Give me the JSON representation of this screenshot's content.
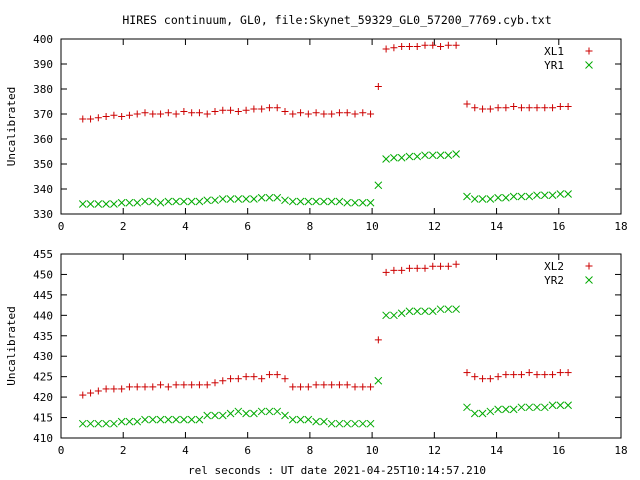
{
  "title": "HIRES continuum, GL0, file:Skynet_59329_GL0_57200_7769.cyb.txt",
  "xlabel": "rel seconds : UT date 2021-04-25T10:14:57.210",
  "chart_data": [
    {
      "type": "scatter",
      "ylabel": "Uncalibrated",
      "xlim": [
        0,
        18
      ],
      "ylim": [
        330,
        400
      ],
      "xticks": [
        0,
        2,
        4,
        6,
        8,
        10,
        12,
        14,
        16,
        18
      ],
      "yticks": [
        330,
        340,
        350,
        360,
        370,
        380,
        390,
        400
      ],
      "grid": false,
      "legend": "top-right",
      "series": [
        {
          "name": "XL1",
          "marker": "+",
          "color": "#cc0000",
          "x": [
            0.7,
            0.95,
            1.2,
            1.45,
            1.7,
            1.95,
            2.2,
            2.45,
            2.7,
            2.95,
            3.2,
            3.45,
            3.7,
            3.95,
            4.2,
            4.45,
            4.7,
            4.95,
            5.2,
            5.45,
            5.7,
            5.95,
            6.2,
            6.45,
            6.7,
            6.95,
            7.2,
            7.45,
            7.7,
            7.95,
            8.2,
            8.45,
            8.7,
            8.95,
            9.2,
            9.45,
            9.7,
            9.95,
            10.2,
            10.45,
            10.7,
            10.95,
            11.2,
            11.45,
            11.7,
            11.95,
            12.2,
            12.45,
            12.7,
            13.05,
            13.3,
            13.55,
            13.8,
            14.05,
            14.3,
            14.55,
            14.8,
            15.05,
            15.3,
            15.55,
            15.8,
            16.05,
            16.3
          ],
          "y": [
            368,
            368,
            368.5,
            369,
            369.5,
            369,
            369.5,
            370,
            370.5,
            370,
            370,
            370.5,
            370,
            371,
            370.5,
            370.5,
            370,
            371,
            371.5,
            371.5,
            371,
            371.5,
            372,
            372,
            372.5,
            372.5,
            371,
            370,
            370.5,
            370,
            370.5,
            370,
            370,
            370.5,
            370.5,
            370,
            370.5,
            370,
            381,
            396,
            396.5,
            397,
            397,
            397,
            397.5,
            397.5,
            397,
            397.5,
            397.5,
            374,
            372.5,
            372,
            372,
            372.5,
            372.5,
            373,
            372.5,
            372.5,
            372.5,
            372.5,
            372.5,
            373,
            373
          ]
        },
        {
          "name": "YR1",
          "marker": "x",
          "color": "#00aa00",
          "x": [
            0.7,
            0.95,
            1.2,
            1.45,
            1.7,
            1.95,
            2.2,
            2.45,
            2.7,
            2.95,
            3.2,
            3.45,
            3.7,
            3.95,
            4.2,
            4.45,
            4.7,
            4.95,
            5.2,
            5.45,
            5.7,
            5.95,
            6.2,
            6.45,
            6.7,
            6.95,
            7.2,
            7.45,
            7.7,
            7.95,
            8.2,
            8.45,
            8.7,
            8.95,
            9.2,
            9.45,
            9.7,
            9.95,
            10.2,
            10.45,
            10.7,
            10.95,
            11.2,
            11.45,
            11.7,
            11.95,
            12.2,
            12.45,
            12.7,
            13.05,
            13.3,
            13.55,
            13.8,
            14.05,
            14.3,
            14.55,
            14.8,
            15.05,
            15.3,
            15.55,
            15.8,
            16.05,
            16.3
          ],
          "y": [
            334,
            334,
            334,
            334,
            334,
            334.5,
            334.5,
            334.5,
            335,
            335,
            334.5,
            335,
            335,
            335,
            335,
            335,
            335.5,
            335.5,
            336,
            336,
            336,
            336,
            336,
            336.5,
            336.5,
            336.5,
            335.5,
            335,
            335,
            335,
            335,
            335,
            335,
            335,
            334.5,
            334.5,
            334.5,
            334.5,
            341.5,
            352,
            352.5,
            352.5,
            353,
            353,
            353.5,
            353.5,
            353.5,
            353.5,
            354,
            337,
            336,
            336,
            336,
            336.5,
            336.5,
            337,
            337,
            337,
            337.5,
            337.5,
            337.5,
            338,
            338
          ]
        }
      ]
    },
    {
      "type": "scatter",
      "ylabel": "Uncalibrated",
      "xlim": [
        0,
        18
      ],
      "ylim": [
        410,
        455
      ],
      "xticks": [
        0,
        2,
        4,
        6,
        8,
        10,
        12,
        14,
        16,
        18
      ],
      "yticks": [
        410,
        415,
        420,
        425,
        430,
        435,
        440,
        445,
        450,
        455
      ],
      "grid": false,
      "legend": "top-right",
      "series": [
        {
          "name": "XL2",
          "marker": "+",
          "color": "#cc0000",
          "x": [
            0.7,
            0.95,
            1.2,
            1.45,
            1.7,
            1.95,
            2.2,
            2.45,
            2.7,
            2.95,
            3.2,
            3.45,
            3.7,
            3.95,
            4.2,
            4.45,
            4.7,
            4.95,
            5.2,
            5.45,
            5.7,
            5.95,
            6.2,
            6.45,
            6.7,
            6.95,
            7.2,
            7.45,
            7.7,
            7.95,
            8.2,
            8.45,
            8.7,
            8.95,
            9.2,
            9.45,
            9.7,
            9.95,
            10.2,
            10.45,
            10.7,
            10.95,
            11.2,
            11.45,
            11.7,
            11.95,
            12.2,
            12.45,
            12.7,
            13.05,
            13.3,
            13.55,
            13.8,
            14.05,
            14.3,
            14.55,
            14.8,
            15.05,
            15.3,
            15.55,
            15.8,
            16.05,
            16.3
          ],
          "y": [
            420.5,
            421,
            421.5,
            422,
            422,
            422,
            422.5,
            422.5,
            422.5,
            422.5,
            423,
            422.5,
            423,
            423,
            423,
            423,
            423,
            423.5,
            424,
            424.5,
            424.5,
            425,
            425,
            424.5,
            425.5,
            425.5,
            424.5,
            422.5,
            422.5,
            422.5,
            423,
            423,
            423,
            423,
            423,
            422.5,
            422.5,
            422.5,
            434,
            450.5,
            451,
            451,
            451.5,
            451.5,
            451.5,
            452,
            452,
            452,
            452.5,
            426,
            425,
            424.5,
            424.5,
            425,
            425.5,
            425.5,
            425.5,
            426,
            425.5,
            425.5,
            425.5,
            426,
            426
          ]
        },
        {
          "name": "YR2",
          "marker": "x",
          "color": "#00aa00",
          "x": [
            0.7,
            0.95,
            1.2,
            1.45,
            1.7,
            1.95,
            2.2,
            2.45,
            2.7,
            2.95,
            3.2,
            3.45,
            3.7,
            3.95,
            4.2,
            4.45,
            4.7,
            4.95,
            5.2,
            5.45,
            5.7,
            5.95,
            6.2,
            6.45,
            6.7,
            6.95,
            7.2,
            7.45,
            7.7,
            7.95,
            8.2,
            8.45,
            8.7,
            8.95,
            9.2,
            9.45,
            9.7,
            9.95,
            10.2,
            10.45,
            10.7,
            10.95,
            11.2,
            11.45,
            11.7,
            11.95,
            12.2,
            12.45,
            12.7,
            13.05,
            13.3,
            13.55,
            13.8,
            14.05,
            14.3,
            14.55,
            14.8,
            15.05,
            15.3,
            15.55,
            15.8,
            16.05,
            16.3
          ],
          "y": [
            413.5,
            413.5,
            413.5,
            413.5,
            413.5,
            414,
            414,
            414,
            414.5,
            414.5,
            414.5,
            414.5,
            414.5,
            414.5,
            414.5,
            414.5,
            415.5,
            415.5,
            415.5,
            416,
            416.5,
            416,
            416,
            416.5,
            416.5,
            416.5,
            415.5,
            414.5,
            414.5,
            414.5,
            414,
            414,
            413.5,
            413.5,
            413.5,
            413.5,
            413.5,
            413.5,
            424,
            440,
            440,
            440.5,
            441,
            441,
            441,
            441,
            441.5,
            441.5,
            441.5,
            417.5,
            416,
            416,
            416.5,
            417,
            417,
            417,
            417.5,
            417.5,
            417.5,
            417.5,
            418,
            418,
            418
          ]
        }
      ]
    }
  ]
}
